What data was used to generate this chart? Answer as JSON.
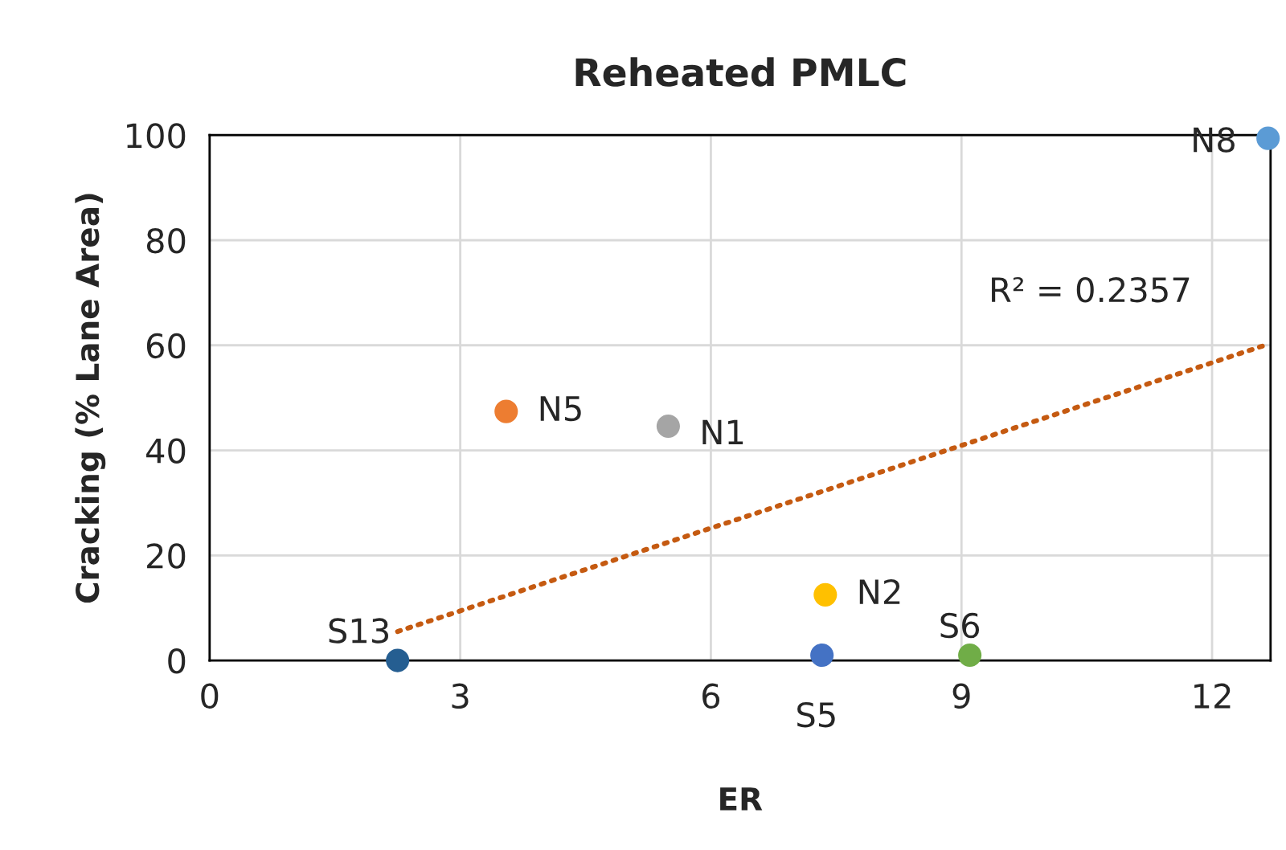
{
  "chart_data": {
    "type": "scatter",
    "title": "Reheated PMLC",
    "xlabel": "ER",
    "ylabel": "Cracking (% Lane Area)",
    "xlim": [
      0,
      12.7
    ],
    "ylim": [
      0,
      100
    ],
    "xticks": [
      0,
      3,
      6,
      9,
      12
    ],
    "yticks": [
      0,
      20,
      40,
      60,
      80,
      100
    ],
    "grid": true,
    "series": [
      {
        "marker": "circle",
        "x": [
          2.25,
          3.55,
          5.49,
          7.37,
          7.33,
          9.1,
          12.67
        ],
        "values": [
          0,
          47.4,
          44.6,
          12.5,
          1,
          1,
          99.4
        ],
        "colors": [
          "#255e91",
          "#ed7d31",
          "#a5a5a5",
          "#ffc000",
          "#4472c4",
          "#70ad47",
          "#5b9bd5"
        ]
      },
      {
        "type": "line",
        "x": [
          2.25,
          12.67
        ],
        "values": [
          5.5,
          60.2
        ],
        "color": "#c55a11",
        "line_style": "dotted"
      }
    ],
    "annotations": [
      {
        "text": "S13",
        "x": 2.25,
        "y": 0
      },
      {
        "text": "N5",
        "x": 3.55,
        "y": 47.4
      },
      {
        "text": "N1",
        "x": 5.49,
        "y": 44.6
      },
      {
        "text": "N2",
        "x": 7.37,
        "y": 12.5
      },
      {
        "text": "S5",
        "x": 7.33,
        "y": 1
      },
      {
        "text": "S6",
        "x": 9.1,
        "y": 1
      },
      {
        "text": "N8",
        "x": 12.67,
        "y": 99.4
      },
      "R² = 0.2357"
    ]
  }
}
